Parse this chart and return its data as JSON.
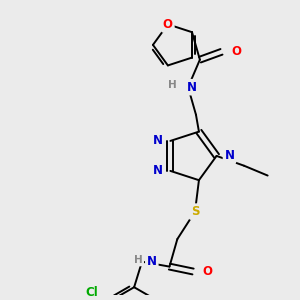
{
  "bg_color": "#ebebeb",
  "figsize": [
    3.0,
    3.0
  ],
  "dpi": 100,
  "atom_colors": {
    "O": "#ff0000",
    "N": "#0000cc",
    "S": "#ccaa00",
    "Cl": "#00aa00",
    "C": "#000000",
    "H": "#888888"
  },
  "lw": 1.4,
  "fs": 8.5
}
